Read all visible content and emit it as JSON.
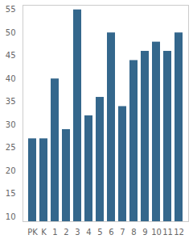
{
  "chart_data": {
    "type": "bar",
    "categories": [
      "PK",
      "K",
      "1",
      "2",
      "3",
      "4",
      "5",
      "6",
      "7",
      "8",
      "9",
      "10",
      "11",
      "12"
    ],
    "values": [
      27,
      27,
      40,
      29,
      55,
      32,
      36,
      50,
      34,
      44,
      46,
      48,
      46,
      50
    ],
    "color": "#34678c",
    "ylim": [
      9,
      56
    ],
    "yticks": [
      10,
      15,
      20,
      25,
      30,
      35,
      40,
      45,
      50,
      55
    ],
    "grid": false
  }
}
